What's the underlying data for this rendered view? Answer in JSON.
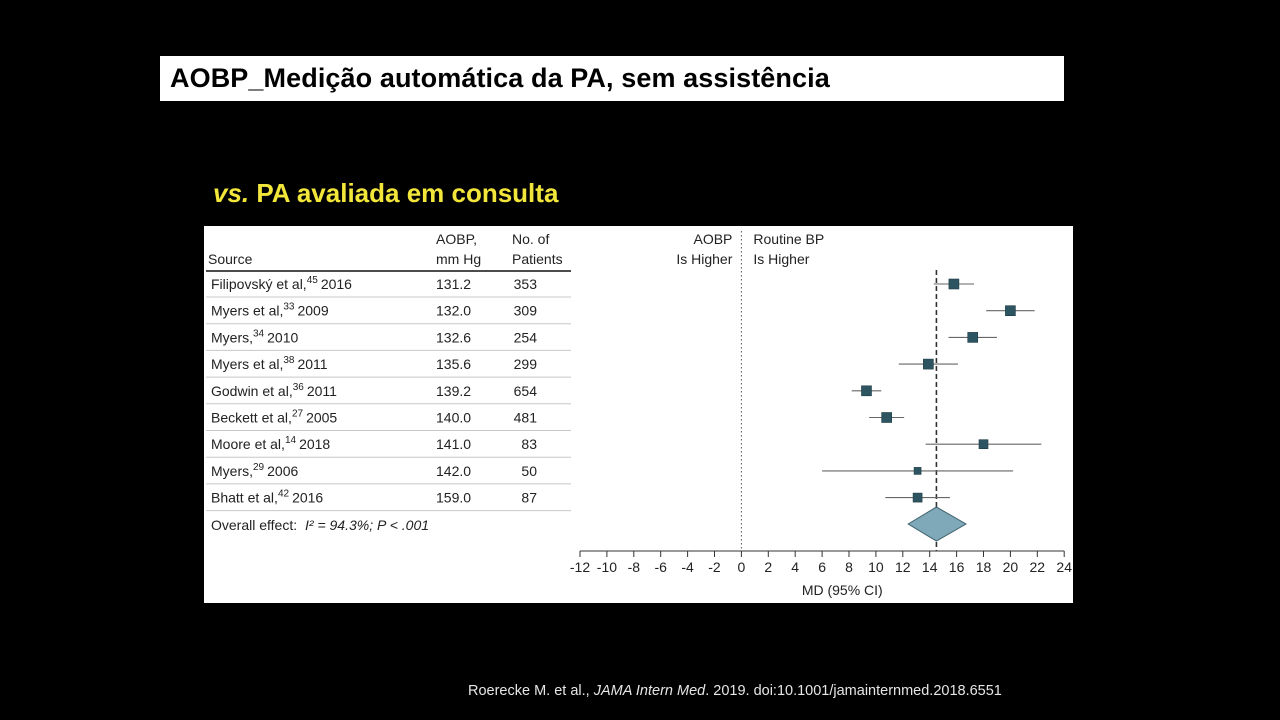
{
  "header": {
    "title": "AOBP_Medição automática da PA, sem assistência"
  },
  "subtitle": {
    "prefix": "vs.",
    "text": "PA avaliada em consulta"
  },
  "table": {
    "headers": {
      "source": "Source",
      "aobp_line1": "AOBP,",
      "aobp_line2": "mm Hg",
      "patients_line1": "No. of",
      "patients_line2": "Patients"
    },
    "overall_label": "Overall effect:",
    "overall_stats": "I² = 94.3%; P < .001"
  },
  "chart_data": {
    "type": "forest",
    "direction_labels": {
      "left": [
        "AOBP",
        "Is Higher"
      ],
      "right": [
        "Routine BP",
        "Is Higher"
      ]
    },
    "xlabel": "MD (95% CI)",
    "xlim": [
      -12,
      24
    ],
    "xticks": [
      -12,
      -10,
      -8,
      -6,
      -4,
      -2,
      0,
      2,
      4,
      6,
      8,
      10,
      12,
      14,
      16,
      18,
      20,
      22,
      24
    ],
    "reference_line": 0,
    "overall_line": 14.5,
    "studies": [
      {
        "author": "Filipovský et al,",
        "ref": "45",
        "year": "2016",
        "aobp": "131.2",
        "patients": "353",
        "md": 15.8,
        "ci": [
          14.3,
          17.3
        ]
      },
      {
        "author": "Myers et al,",
        "ref": "33",
        "year": "2009",
        "aobp": "132.0",
        "patients": "309",
        "md": 20.0,
        "ci": [
          18.2,
          21.8
        ]
      },
      {
        "author": "Myers,",
        "ref": "34",
        "year": "2010",
        "aobp": "132.6",
        "patients": "254",
        "md": 17.2,
        "ci": [
          15.4,
          19.0
        ]
      },
      {
        "author": "Myers et al,",
        "ref": "38",
        "year": "2011",
        "aobp": "135.6",
        "patients": "299",
        "md": 13.9,
        "ci": [
          11.7,
          16.1
        ]
      },
      {
        "author": "Godwin et al,",
        "ref": "36",
        "year": "2011",
        "aobp": "139.2",
        "patients": "654",
        "md": 9.3,
        "ci": [
          8.2,
          10.4
        ]
      },
      {
        "author": "Beckett et al,",
        "ref": "27",
        "year": "2005",
        "aobp": "140.0",
        "patients": "481",
        "md": 10.8,
        "ci": [
          9.5,
          12.1
        ]
      },
      {
        "author": "Moore et al,",
        "ref": "14",
        "year": "2018",
        "aobp": "141.0",
        "patients": "83",
        "md": 18.0,
        "ci": [
          13.7,
          22.3
        ]
      },
      {
        "author": "Myers,",
        "ref": "29",
        "year": "2006",
        "aobp": "142.0",
        "patients": "50",
        "md": 13.1,
        "ci": [
          6.0,
          20.2
        ]
      },
      {
        "author": "Bhatt et al,",
        "ref": "42",
        "year": "2016",
        "aobp": "159.0",
        "patients": "87",
        "md": 13.1,
        "ci": [
          10.7,
          15.5
        ]
      }
    ],
    "overall": {
      "md": 14.5,
      "ci": [
        12.4,
        16.7
      ]
    }
  },
  "citation": {
    "authors": "Roerecke M. et al.,",
    "journal": "JAMA Intern Med",
    "rest": ". 2019. doi:10.1001/jamainternmed.2018.6551"
  },
  "colors": {
    "marker": "#2d5561",
    "diamond": "#7fa9b8",
    "subtitle": "#f2e63a"
  }
}
